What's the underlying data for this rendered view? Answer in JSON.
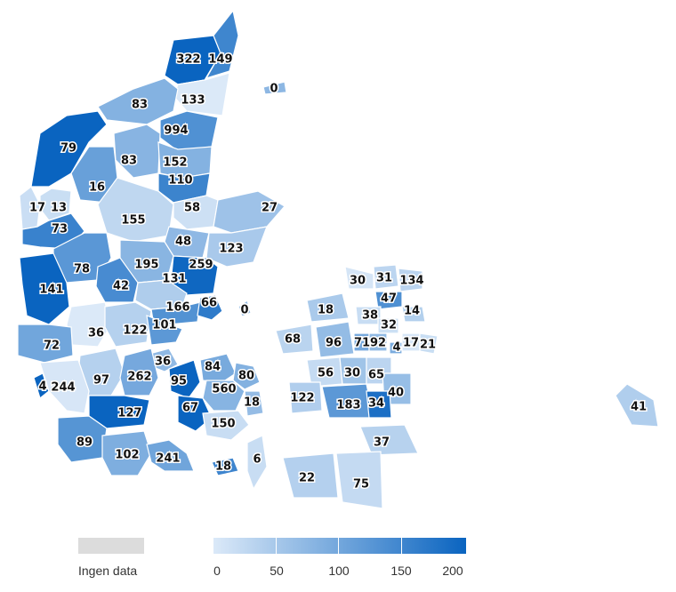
{
  "legend": {
    "no_data_label": "Ingen data",
    "ticks": [
      "0",
      "50",
      "100",
      "150",
      "200"
    ],
    "scale_min": 0,
    "scale_max": 200,
    "color_low": "#dbe9f8",
    "color_high": "#0a64c0",
    "no_data_color": "#dcdcdc"
  },
  "regions": [
    {
      "name": "322",
      "value": 322
    },
    {
      "name": "149",
      "value": 149
    },
    {
      "name": "0 (Læsø)",
      "value": 0
    },
    {
      "name": "83 (north)",
      "value": 83
    },
    {
      "name": "133",
      "value": 133
    },
    {
      "name": "994",
      "value": 994
    },
    {
      "name": "79",
      "value": 79
    },
    {
      "name": "83",
      "value": 83
    },
    {
      "name": "152",
      "value": 152
    },
    {
      "name": "110",
      "value": 110
    },
    {
      "name": "16",
      "value": 16
    },
    {
      "name": "17",
      "value": 17
    },
    {
      "name": "13",
      "value": 13
    },
    {
      "name": "58",
      "value": 58
    },
    {
      "name": "27",
      "value": 27
    },
    {
      "name": "155",
      "value": 155
    },
    {
      "name": "73",
      "value": 73
    },
    {
      "name": "48",
      "value": 48
    },
    {
      "name": "123",
      "value": 123
    },
    {
      "name": "78",
      "value": 78
    },
    {
      "name": "195",
      "value": 195
    },
    {
      "name": "259",
      "value": 259
    },
    {
      "name": "141",
      "value": 141
    },
    {
      "name": "42",
      "value": 42
    },
    {
      "name": "131",
      "value": 131
    },
    {
      "name": "166",
      "value": 166
    },
    {
      "name": "66",
      "value": 66
    },
    {
      "name": "0 (Samsø)",
      "value": 0
    },
    {
      "name": "36 (west)",
      "value": 36
    },
    {
      "name": "122 (Jylland)",
      "value": 122
    },
    {
      "name": "101",
      "value": 101
    },
    {
      "name": "72",
      "value": 72
    },
    {
      "name": "36",
      "value": 36
    },
    {
      "name": "97",
      "value": 97
    },
    {
      "name": "262",
      "value": 262
    },
    {
      "name": "4 (west)",
      "value": 4
    },
    {
      "name": "244",
      "value": 244
    },
    {
      "name": "127",
      "value": 127
    },
    {
      "name": "89",
      "value": 89
    },
    {
      "name": "102",
      "value": 102
    },
    {
      "name": "241",
      "value": 241
    },
    {
      "name": "95",
      "value": 95
    },
    {
      "name": "84",
      "value": 84
    },
    {
      "name": "80",
      "value": 80
    },
    {
      "name": "560",
      "value": 560
    },
    {
      "name": "67",
      "value": 67
    },
    {
      "name": "18 (Fyn east)",
      "value": 18
    },
    {
      "name": "150",
      "value": 150
    },
    {
      "name": "18 (Ærø)",
      "value": 18
    },
    {
      "name": "6",
      "value": 6
    },
    {
      "name": "30 (Sjælland north)",
      "value": 30
    },
    {
      "name": "31",
      "value": 31
    },
    {
      "name": "134",
      "value": 134
    },
    {
      "name": "47",
      "value": 47
    },
    {
      "name": "18 (Sjælland)",
      "value": 18
    },
    {
      "name": "38",
      "value": 38
    },
    {
      "name": "14",
      "value": 14
    },
    {
      "name": "32",
      "value": 32
    },
    {
      "name": "68",
      "value": 68
    },
    {
      "name": "96",
      "value": 96
    },
    {
      "name": "71",
      "value": 71
    },
    {
      "name": "92",
      "value": 92
    },
    {
      "name": "4",
      "value": 4
    },
    {
      "name": "17 (Copenhagen)",
      "value": 17
    },
    {
      "name": "21",
      "value": 21
    },
    {
      "name": "56",
      "value": 56
    },
    {
      "name": "30",
      "value": 30
    },
    {
      "name": "65",
      "value": 65
    },
    {
      "name": "40",
      "value": 40
    },
    {
      "name": "122 (Sjælland)",
      "value": 122
    },
    {
      "name": "183",
      "value": 183
    },
    {
      "name": "34",
      "value": 34
    },
    {
      "name": "37",
      "value": 37
    },
    {
      "name": "22",
      "value": 22
    },
    {
      "name": "75",
      "value": 75
    },
    {
      "name": "41",
      "value": 41
    }
  ]
}
